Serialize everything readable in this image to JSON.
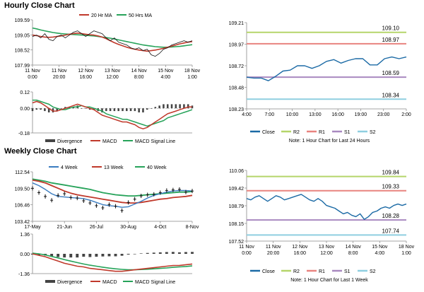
{
  "sections": {
    "hourly_title": "Hourly Close Chart",
    "weekly_title": "Weekly Close Chart"
  },
  "colors": {
    "close": "#1b6aa5",
    "ma20": "#c0392b",
    "ma50": "#27a35a",
    "r2": "#b5d56a",
    "r1": "#e8837f",
    "s1": "#a989c0",
    "s2": "#8fcfe0",
    "divergence": "#444444",
    "macd": "#c0392b",
    "signal": "#27a35a",
    "wk4": "#3a7cc0",
    "wk13": "#c0392b",
    "wk40": "#27a35a"
  },
  "chart_data": [
    {
      "id": "hourly_price",
      "type": "line",
      "legend": [
        "20 Hr MA",
        "50 Hrs MA"
      ],
      "yticks": [
        "109.59",
        "109.05",
        "108.52",
        "107.99"
      ],
      "ylim": [
        107.99,
        109.59
      ],
      "xticks": [
        [
          "11 Nov",
          "0:00"
        ],
        [
          "11 Nov",
          "20:00"
        ],
        [
          "12 Nov",
          "16:00"
        ],
        [
          "13 Nov",
          "12:00"
        ],
        [
          "14 Nov",
          "8:00"
        ],
        [
          "15 Nov",
          "4:00"
        ],
        [
          "18 Nov",
          "1:00"
        ]
      ],
      "series": [
        {
          "name": "Close",
          "values": [
            109.0,
            109.05,
            108.95,
            109.1,
            108.9,
            108.85,
            109.0,
            109.05,
            108.95,
            109.05,
            109.15,
            109.2,
            109.1,
            109.0,
            109.1,
            109.2,
            109.15,
            109.1,
            108.95,
            108.85,
            108.95,
            108.8,
            108.75,
            108.7,
            108.6,
            108.55,
            108.6,
            108.5,
            108.55,
            108.35,
            108.3,
            108.4,
            108.55,
            108.6,
            108.7,
            108.75,
            108.8,
            108.85,
            108.8,
            108.85
          ]
        },
        {
          "name": "20 Hr MA",
          "values": [
            109.05,
            109.03,
            109.0,
            108.98,
            108.97,
            108.98,
            109.0,
            109.02,
            109.05,
            109.08,
            109.1,
            109.12,
            109.1,
            109.08,
            109.06,
            109.05,
            109.02,
            108.98,
            108.92,
            108.85,
            108.78,
            108.72,
            108.67,
            108.62,
            108.58,
            108.55,
            108.52,
            108.5,
            108.48,
            108.5,
            108.52,
            108.55,
            108.58,
            108.62,
            108.66,
            108.7,
            108.74,
            108.77,
            108.8,
            108.82
          ]
        },
        {
          "name": "50 Hrs MA",
          "values": [
            109.3,
            109.27,
            109.23,
            109.2,
            109.17,
            109.14,
            109.12,
            109.1,
            109.09,
            109.08,
            109.07,
            109.06,
            109.05,
            109.04,
            109.03,
            109.02,
            109.0,
            108.98,
            108.96,
            108.94,
            108.91,
            108.88,
            108.85,
            108.82,
            108.79,
            108.76,
            108.73,
            108.7,
            108.68,
            108.66,
            108.64,
            108.63,
            108.62,
            108.62,
            108.63,
            108.64,
            108.65,
            108.67,
            108.69,
            108.71
          ]
        }
      ]
    },
    {
      "id": "hourly_macd",
      "type": "line",
      "yticks": [
        "0.12",
        "0.00",
        "-0.18"
      ],
      "ylim": [
        -0.18,
        0.12
      ],
      "legend": [
        "Divergence",
        "MACD",
        "MACD Signal Line"
      ],
      "series": [
        {
          "name": "MACD",
          "values": [
            0.04,
            0.05,
            0.04,
            0.02,
            0.0,
            -0.02,
            -0.02,
            -0.01,
            0.0,
            0.01,
            0.02,
            0.03,
            0.02,
            0.01,
            0.0,
            -0.01,
            -0.03,
            -0.05,
            -0.06,
            -0.07,
            -0.08,
            -0.09,
            -0.1,
            -0.1,
            -0.11,
            -0.12,
            -0.14,
            -0.15,
            -0.14,
            -0.12,
            -0.1,
            -0.08,
            -0.06,
            -0.04,
            -0.03,
            -0.02,
            -0.01,
            0.0,
            0.01,
            0.01
          ]
        },
        {
          "name": "MACD Signal Line",
          "values": [
            0.06,
            0.06,
            0.05,
            0.04,
            0.03,
            0.01,
            0.0,
            -0.01,
            -0.01,
            0.0,
            0.01,
            0.01,
            0.02,
            0.01,
            0.01,
            0.0,
            -0.01,
            -0.02,
            -0.04,
            -0.05,
            -0.06,
            -0.07,
            -0.08,
            -0.08,
            -0.09,
            -0.1,
            -0.11,
            -0.12,
            -0.13,
            -0.12,
            -0.11,
            -0.1,
            -0.09,
            -0.07,
            -0.06,
            -0.05,
            -0.04,
            -0.03,
            -0.02,
            -0.01
          ]
        },
        {
          "name": "Divergence",
          "values": [
            -0.02,
            -0.01,
            -0.01,
            -0.02,
            -0.03,
            -0.03,
            -0.02,
            0.0,
            0.01,
            0.01,
            0.01,
            0.02,
            0.0,
            0.0,
            -0.01,
            -0.01,
            -0.02,
            -0.03,
            -0.02,
            -0.02,
            -0.02,
            -0.02,
            -0.02,
            -0.02,
            -0.02,
            -0.02,
            -0.03,
            -0.03,
            -0.01,
            0.0,
            0.01,
            0.02,
            0.03,
            0.03,
            0.03,
            0.03,
            0.03,
            0.03,
            0.03,
            0.02
          ]
        }
      ]
    },
    {
      "id": "hourly_levels",
      "type": "line",
      "yticks": [
        "109.21",
        "108.97",
        "108.72",
        "108.48",
        "108.23"
      ],
      "ylim": [
        108.23,
        109.21
      ],
      "xticks": [
        "4:00",
        "7:00",
        "10:00",
        "13:00",
        "16:00",
        "19:00",
        "23:00",
        "2:00"
      ],
      "levels": {
        "R2": 109.1,
        "R1": 108.97,
        "S1": 108.59,
        "S2": 108.34
      },
      "level_labels": [
        "109.10",
        "108.97",
        "108.59",
        "108.34"
      ],
      "series": [
        {
          "name": "Close",
          "values": [
            108.59,
            108.58,
            108.58,
            108.55,
            108.6,
            108.66,
            108.67,
            108.72,
            108.72,
            108.69,
            108.72,
            108.77,
            108.79,
            108.75,
            108.78,
            108.8,
            108.8,
            108.73,
            108.73,
            108.8,
            108.82,
            108.8,
            108.82
          ]
        }
      ],
      "legend": [
        "Close",
        "R2",
        "R1",
        "S1",
        "S2"
      ],
      "note": "Note: 1 Hour Chart for Last 24 Hours"
    },
    {
      "id": "weekly_price",
      "type": "line",
      "legend": [
        "4 Week",
        "13 Week",
        "40 Week"
      ],
      "yticks": [
        "112.54",
        "109.50",
        "106.46",
        "103.42"
      ],
      "ylim": [
        103.42,
        112.54
      ],
      "xticks": [
        "17-May",
        "21-Jun",
        "26-Jul",
        "30-Aug",
        "4-Oct",
        "8-Nov"
      ],
      "series": [
        {
          "name": "Close",
          "values": [
            109.5,
            108.7,
            108.0,
            107.3,
            108.2,
            108.5,
            107.8,
            107.7,
            107.2,
            106.8,
            106.3,
            105.9,
            106.5,
            106.2,
            105.4,
            106.9,
            107.5,
            108.1,
            108.3,
            108.4,
            108.7,
            109.1,
            109.2,
            109.3,
            108.8,
            109.0
          ]
        },
        {
          "name": "4 Week",
          "values": [
            110.5,
            110.0,
            109.3,
            108.5,
            108.0,
            107.9,
            107.8,
            107.7,
            107.6,
            107.3,
            106.9,
            106.5,
            106.3,
            106.2,
            106.0,
            106.1,
            106.6,
            107.1,
            107.7,
            108.2,
            108.5,
            108.8,
            109.0,
            109.1,
            109.1,
            109.0
          ]
        },
        {
          "name": "13 Week",
          "values": [
            111.0,
            110.8,
            110.5,
            110.0,
            109.5,
            109.0,
            108.6,
            108.3,
            108.1,
            107.9,
            107.7,
            107.5,
            107.3,
            107.1,
            106.9,
            106.8,
            106.8,
            106.9,
            107.1,
            107.3,
            107.5,
            107.6,
            107.8,
            107.9,
            108.0,
            108.2
          ]
        },
        {
          "name": "40 Week",
          "values": [
            111.2,
            111.0,
            110.8,
            110.5,
            110.3,
            110.1,
            109.9,
            109.7,
            109.5,
            109.3,
            109.0,
            108.7,
            108.5,
            108.3,
            108.2,
            108.1,
            108.1,
            108.2,
            108.3,
            108.4,
            108.5,
            108.6,
            108.7,
            108.8,
            108.8,
            108.9
          ]
        }
      ]
    },
    {
      "id": "weekly_macd",
      "type": "line",
      "yticks": [
        "1.36",
        "0.00",
        "-1.36"
      ],
      "ylim": [
        -1.36,
        1.36
      ],
      "legend": [
        "Divergence",
        "MACD",
        "MACD Signal Line"
      ],
      "series": [
        {
          "name": "MACD",
          "values": [
            0.0,
            -0.1,
            -0.2,
            -0.35,
            -0.5,
            -0.65,
            -0.75,
            -0.85,
            -0.9,
            -1.0,
            -1.05,
            -1.1,
            -1.15,
            -1.2,
            -1.2,
            -1.15,
            -1.1,
            -1.05,
            -1.0,
            -0.95,
            -0.9,
            -0.85,
            -0.8,
            -0.8,
            -0.75,
            -0.7
          ]
        },
        {
          "name": "MACD Signal Line",
          "values": [
            0.05,
            0.0,
            -0.08,
            -0.18,
            -0.28,
            -0.4,
            -0.5,
            -0.6,
            -0.7,
            -0.78,
            -0.85,
            -0.92,
            -0.98,
            -1.03,
            -1.07,
            -1.1,
            -1.1,
            -1.08,
            -1.06,
            -1.03,
            -1.0,
            -0.97,
            -0.93,
            -0.9,
            -0.87,
            -0.83
          ]
        },
        {
          "name": "Divergence",
          "values": [
            -0.05,
            -0.1,
            -0.12,
            -0.17,
            -0.22,
            -0.25,
            -0.25,
            -0.25,
            -0.2,
            -0.22,
            -0.2,
            -0.18,
            -0.17,
            -0.17,
            -0.13,
            -0.05,
            0.0,
            0.03,
            0.06,
            0.08,
            0.1,
            0.12,
            0.13,
            0.1,
            0.12,
            0.13
          ]
        }
      ]
    },
    {
      "id": "weekly_levels",
      "type": "line",
      "yticks": [
        "110.06",
        "109.42",
        "108.79",
        "108.15",
        "107.52"
      ],
      "ylim": [
        107.52,
        110.06
      ],
      "xticks": [
        [
          "11 Nov",
          "0:00"
        ],
        [
          "11 Nov",
          "20:00"
        ],
        [
          "12 Nov",
          "16:00"
        ],
        [
          "13 Nov",
          "12:00"
        ],
        [
          "14 Nov",
          "8:00"
        ],
        [
          "15 Nov",
          "4:00"
        ],
        [
          "18 Nov",
          "1:00"
        ]
      ],
      "levels": {
        "R2": 109.84,
        "R1": 109.33,
        "S1": 108.28,
        "S2": 107.74
      },
      "level_labels": [
        "109.84",
        "109.33",
        "108.28",
        "107.74"
      ],
      "series": [
        {
          "name": "Close",
          "values": [
            109.05,
            109.0,
            109.1,
            109.15,
            109.05,
            108.95,
            109.05,
            109.15,
            109.1,
            109.0,
            109.05,
            109.1,
            109.15,
            109.2,
            109.1,
            109.0,
            108.95,
            109.05,
            108.95,
            108.8,
            108.75,
            108.7,
            108.6,
            108.5,
            108.55,
            108.45,
            108.4,
            108.5,
            108.3,
            108.4,
            108.55,
            108.6,
            108.7,
            108.75,
            108.7,
            108.8,
            108.85,
            108.8,
            108.85
          ]
        }
      ],
      "legend": [
        "Close",
        "R2",
        "R1",
        "S1",
        "S2"
      ],
      "note": "Note: 1 Hour Chart for Last 1 Week"
    }
  ]
}
